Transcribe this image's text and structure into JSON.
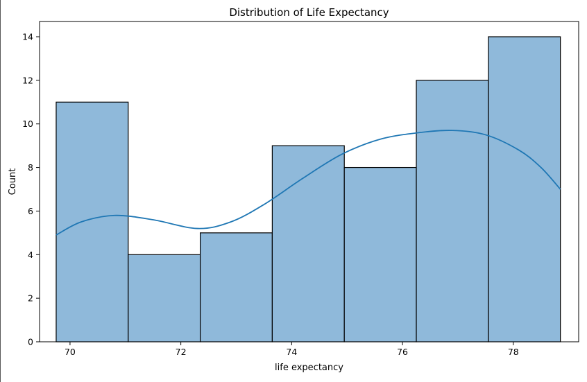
{
  "chart_data": {
    "type": "bar",
    "subtype": "histogram",
    "title": "Distribution of Life Expectancy",
    "xlabel": "life expectancy",
    "ylabel": "Count",
    "xlim": [
      69.45,
      79.18
    ],
    "ylim": [
      0,
      14.7
    ],
    "xticks": [
      70,
      72,
      74,
      76,
      78
    ],
    "yticks": [
      0,
      2,
      4,
      6,
      8,
      10,
      12,
      14
    ],
    "bins": [
      {
        "start": 69.75,
        "end": 71.05,
        "count": 11
      },
      {
        "start": 71.05,
        "end": 72.35,
        "count": 4
      },
      {
        "start": 72.35,
        "end": 73.65,
        "count": 5
      },
      {
        "start": 73.65,
        "end": 74.95,
        "count": 9
      },
      {
        "start": 74.95,
        "end": 76.25,
        "count": 8
      },
      {
        "start": 76.25,
        "end": 77.55,
        "count": 12
      },
      {
        "start": 77.55,
        "end": 78.85,
        "count": 14
      }
    ],
    "kde": {
      "x": [
        69.75,
        70.2,
        70.8,
        71.5,
        72.3,
        72.9,
        73.5,
        74.2,
        74.9,
        75.6,
        76.3,
        76.9,
        77.5,
        78.1,
        78.5,
        78.85
      ],
      "y": [
        4.9,
        5.5,
        5.8,
        5.6,
        5.2,
        5.5,
        6.3,
        7.5,
        8.6,
        9.3,
        9.6,
        9.7,
        9.5,
        8.8,
        8.0,
        7.0
      ]
    },
    "grid": false,
    "legend": false,
    "colors": {
      "bar_fill": "#8fb9da",
      "bar_edge": "#000000",
      "kde_line": "#1f77b4"
    }
  }
}
